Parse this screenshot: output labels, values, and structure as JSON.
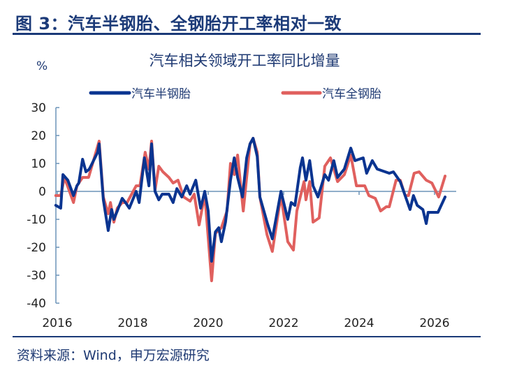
{
  "figure": {
    "title": "图 3：汽车半钢胎、全钢胎开工率相对一致",
    "source": "资料来源：Wind，申万宏源研究"
  },
  "colors": {
    "title": "#1b3a78",
    "semi_steel": "#0a3490",
    "all_steel": "#e0605e",
    "axis": "#6b93b8"
  },
  "chart_data": {
    "type": "line",
    "title": "汽车相关领域开工率同比增量",
    "ylabel": "%",
    "xlabel": "",
    "ylim": [
      -40,
      30
    ],
    "xlim": [
      2016,
      2026.5
    ],
    "yticks": [
      30,
      20,
      10,
      0,
      -10,
      -20,
      -30,
      -40
    ],
    "xticks": [
      2016,
      2018,
      2020,
      2022,
      2024,
      2026
    ],
    "grid": false,
    "legend": "top",
    "series": [
      {
        "name": "汽车半钢胎",
        "color": "#0a3490",
        "x": [
          2015.96,
          2016.09,
          2016.15,
          2016.28,
          2016.43,
          2016.52,
          2016.57,
          2016.67,
          2016.76,
          2016.85,
          2017.07,
          2017.11,
          2017.22,
          2017.35,
          2017.44,
          2017.5,
          2017.59,
          2017.72,
          2017.81,
          2017.91,
          2018.09,
          2018.17,
          2018.31,
          2018.43,
          2018.5,
          2018.59,
          2018.69,
          2018.78,
          2018.96,
          2019.07,
          2019.17,
          2019.3,
          2019.43,
          2019.52,
          2019.67,
          2019.8,
          2019.91,
          2020.0,
          2020.09,
          2020.19,
          2020.28,
          2020.35,
          2020.46,
          2020.59,
          2020.69,
          2020.78,
          2020.91,
          2021.02,
          2021.11,
          2021.19,
          2021.3,
          2021.37,
          2021.57,
          2021.7,
          2021.93,
          2022.11,
          2022.2,
          2022.3,
          2022.44,
          2022.5,
          2022.59,
          2022.69,
          2022.78,
          2022.91,
          2023.09,
          2023.19,
          2023.33,
          2023.43,
          2023.61,
          2023.78,
          2023.89,
          2024.11,
          2024.2,
          2024.35,
          2024.48,
          2024.8,
          2024.91,
          2025.09,
          2025.35,
          2025.44,
          2025.54,
          2025.69,
          2025.78,
          2025.83,
          2026.09,
          2026.28
        ],
        "y": [
          -5,
          -6,
          6,
          4,
          -1.5,
          2,
          3,
          11.5,
          7,
          8,
          14,
          17,
          -3,
          -14,
          -6.5,
          -10,
          -7,
          -2.5,
          -4,
          -6,
          0,
          -4,
          12,
          2,
          17,
          0,
          -3,
          -1,
          -1,
          -4,
          1,
          -2,
          2,
          -1,
          4,
          -6,
          0,
          -7,
          -25,
          -14.5,
          -13,
          -18,
          -11,
          4,
          12,
          5,
          -2,
          12,
          17,
          19,
          12.5,
          -2,
          -11.5,
          -17,
          0,
          -10,
          -4,
          -5,
          8.5,
          12,
          4,
          11,
          2,
          -2,
          6,
          4,
          11,
          5,
          8,
          15.5,
          11,
          12,
          6.5,
          11,
          8,
          6.5,
          7,
          3.5,
          -6.5,
          -1.5,
          -5,
          -6.5,
          -11.5,
          -7.5,
          -7.5,
          -2
        ]
      },
      {
        "name": "汽车全钢胎",
        "color": "#e0605e",
        "x": [
          2015.96,
          2016.09,
          2016.19,
          2016.43,
          2016.52,
          2016.67,
          2016.83,
          2017.11,
          2017.22,
          2017.35,
          2017.41,
          2017.5,
          2017.59,
          2017.72,
          2017.85,
          2018.09,
          2018.19,
          2018.33,
          2018.43,
          2018.5,
          2018.59,
          2018.69,
          2018.8,
          2018.96,
          2019.07,
          2019.2,
          2019.35,
          2019.52,
          2019.63,
          2019.76,
          2019.91,
          2020.09,
          2020.19,
          2020.35,
          2020.5,
          2020.59,
          2020.69,
          2020.78,
          2020.93,
          2021.11,
          2021.19,
          2021.3,
          2021.37,
          2021.56,
          2021.7,
          2021.93,
          2022.11,
          2022.26,
          2022.35,
          2022.54,
          2022.59,
          2022.69,
          2022.78,
          2022.94,
          2023.09,
          2023.24,
          2023.43,
          2023.61,
          2023.78,
          2023.93,
          2024.15,
          2024.26,
          2024.43,
          2024.57,
          2024.72,
          2024.8,
          2024.98,
          2025.09,
          2025.22,
          2025.31,
          2025.46,
          2025.59,
          2025.78,
          2025.93,
          2026.11,
          2026.28
        ],
        "y": [
          -1.5,
          -1.5,
          5,
          -4,
          2,
          5,
          5,
          18,
          -2,
          -8,
          -4,
          -11,
          -6,
          -4,
          -4,
          2,
          2,
          14,
          8,
          18,
          0.5,
          9,
          7,
          5,
          3,
          4,
          -2,
          -3.5,
          -1,
          -12,
          -1,
          -32,
          -15,
          -13,
          -7,
          10,
          6,
          13,
          -7,
          17,
          19,
          14,
          -2,
          -15.5,
          -21.5,
          -1.5,
          -18,
          -21,
          -7,
          3.5,
          -3,
          3.5,
          -11,
          -9.5,
          9,
          12,
          3.5,
          6,
          13,
          2,
          2,
          -1.5,
          -2.5,
          -7,
          -5.5,
          -5.5,
          4,
          4,
          -1.5,
          -1.5,
          6.5,
          7,
          4,
          3,
          -2,
          5.5
        ]
      }
    ]
  }
}
